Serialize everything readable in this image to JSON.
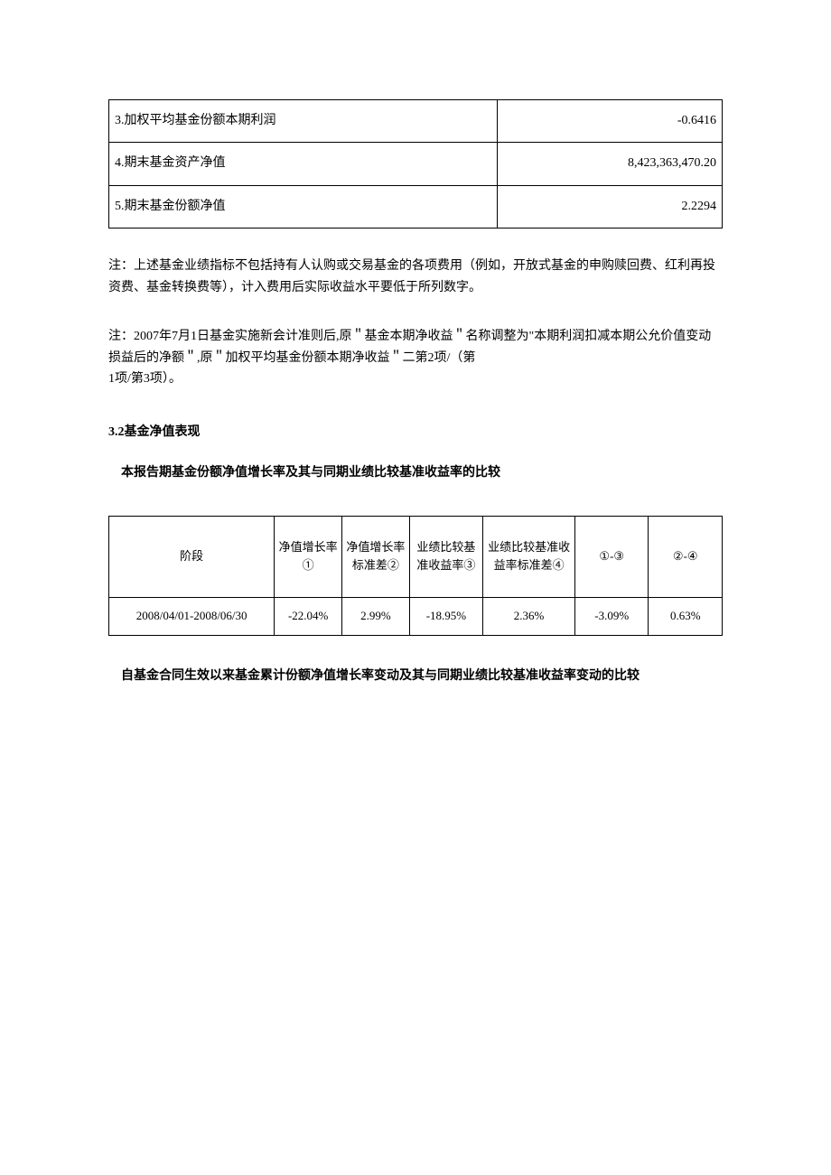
{
  "table1": {
    "rows": [
      {
        "label": "3.加权平均基金份额本期利润",
        "value": "-0.6416"
      },
      {
        "label": "4.期末基金资产净值",
        "value": "8,423,363,470.20"
      },
      {
        "label": "5.期末基金份额净值",
        "value": "2.2294"
      }
    ]
  },
  "note1": "注：上述基金业绩指标不包括持有人认购或交易基金的各项费用（例如，开放式基金的申购赎回费、红利再投资费、基金转换费等），计入费用后实际收益水平要低于所列数字。",
  "note2_line1": "注：2007年7月1日基金实施新会计准则后,原＂基金本期净收益＂名称调整为\"本期利润扣减本期公允价值变动损益后的净额＂,原＂加权平均基金份额本期净收益＂二第2项/（第",
  "note2_line2": "1项/第3项）。",
  "section_heading": "3.2基金净值表现",
  "sub_heading": "本报告期基金份额净值增长率及其与同期业绩比较基准收益率的比较",
  "table2": {
    "headers": [
      "阶段",
      "净值增长率①",
      "净值增长率标准差②",
      "业绩比较基准收益率③",
      "业绩比较基准收益率标准差④",
      "①-③",
      "②-④"
    ],
    "row": [
      "2008/04/01-2008/06/30",
      "-22.04%",
      "2.99%",
      "-18.95%",
      "2.36%",
      "-3.09%",
      "0.63%"
    ],
    "col_widths": [
      "27%",
      "11%",
      "11%",
      "12%",
      "15%",
      "12%",
      "12%"
    ]
  },
  "footer_heading": "自基金合同生效以来基金累计份额净值增长率变动及其与同期业绩比较基准收益率变动的比较"
}
